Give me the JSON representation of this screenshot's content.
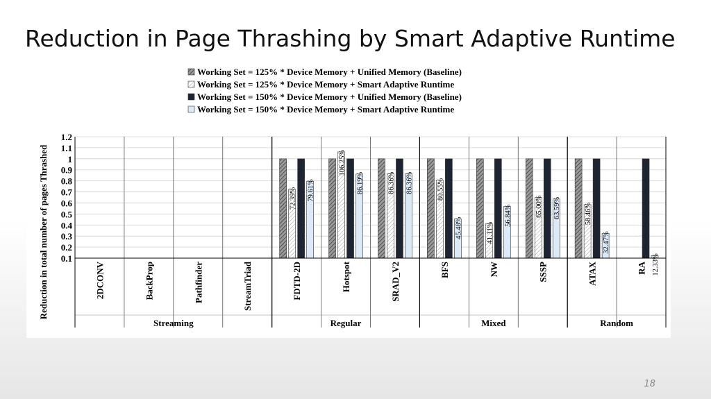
{
  "slide": {
    "title": "Reduction in Page Thrashing by Smart Adaptive Runtime",
    "page_number": "18"
  },
  "chart_data": {
    "type": "bar",
    "ylabel": "Reduction in total number of pages Thrashed",
    "yticks": [
      "0.1",
      "0.2",
      "0.3",
      "0.4",
      "0.5",
      "0.6",
      "0.7",
      "0.8",
      "0.9",
      "1",
      "1.1",
      "1.2"
    ],
    "ylim": [
      0.1,
      1.2
    ],
    "grid": true,
    "legend_position": "top",
    "categories": [
      "2DCONV",
      "BackProp",
      "Pathfinder",
      "StreamTriad",
      "FDTD-2D",
      "Hotspot",
      "SRAD_V2",
      "BFS",
      "NW",
      "SSSP",
      "ATAX",
      "RA"
    ],
    "groups": [
      {
        "label": "Streaming",
        "start": 0,
        "end": 3
      },
      {
        "label": "Regular",
        "start": 4,
        "end": 6
      },
      {
        "label": "Mixed",
        "start": 7,
        "end": 9
      },
      {
        "label": "Random",
        "start": 10,
        "end": 11
      }
    ],
    "series": [
      {
        "name": "Working Set = 125% * Device Memory +  Unified Memory (Baseline)",
        "fill": "#9a9a9a",
        "pattern": "hatch-dark",
        "values": [
          null,
          null,
          null,
          null,
          1,
          1,
          1,
          1,
          1,
          1,
          1,
          null
        ],
        "labels": [
          null,
          null,
          null,
          null,
          null,
          null,
          null,
          null,
          null,
          null,
          null,
          null
        ]
      },
      {
        "name": "Working Set = 125% * Device Memory +  Smart Adaptive Runtime",
        "fill": "#ffffff",
        "pattern": "hatch-light",
        "values": [
          null,
          null,
          null,
          null,
          0.7239,
          1.0625,
          0.8636,
          0.8055,
          0.4111,
          0.65,
          0.5846,
          null
        ],
        "labels": [
          null,
          null,
          null,
          null,
          "72.39%",
          "106.25%",
          "86.36%",
          "80.55%",
          "41.11%",
          "65.00%",
          "58.46%",
          null
        ]
      },
      {
        "name": "Working Set = 150% * Device Memory +  Unified Memory (Baseline)",
        "fill": "#1f2433",
        "pattern": "solid",
        "values": [
          null,
          null,
          null,
          null,
          1,
          1,
          1,
          1,
          1,
          1,
          1,
          1
        ],
        "labels": [
          null,
          null,
          null,
          null,
          null,
          null,
          null,
          null,
          null,
          null,
          null,
          null
        ]
      },
      {
        "name": "Working Set = 150% * Device Memory +  Smart Adaptive Runtime",
        "fill": "#dce9f6",
        "pattern": "solid",
        "values": [
          null,
          null,
          null,
          null,
          0.7961,
          0.8619,
          0.8636,
          0.4548,
          0.5684,
          0.6359,
          0.3247,
          0.1233
        ],
        "labels": [
          null,
          null,
          null,
          null,
          "79.61%",
          "86.19%",
          "86.36%",
          "45.48%",
          "56.84%",
          "63.59%",
          "32.47%",
          "12.33%"
        ]
      }
    ]
  }
}
